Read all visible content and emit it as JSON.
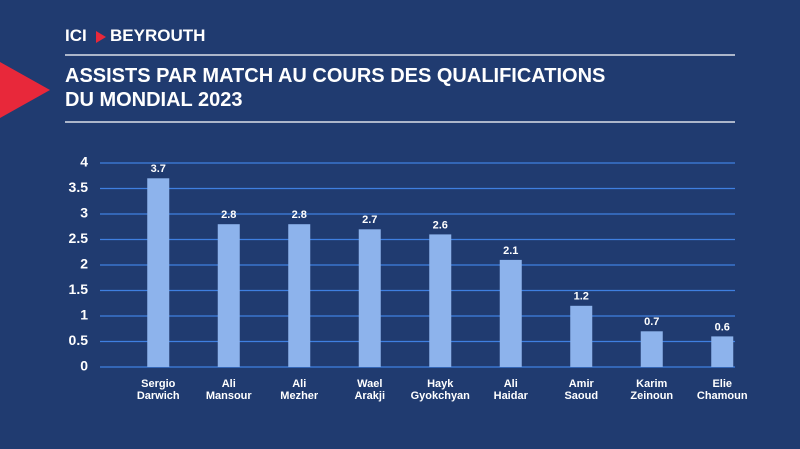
{
  "header": {
    "brand_left": "ICI",
    "brand_right": "BEYROUTH"
  },
  "chart_data": {
    "type": "bar",
    "title": "ASSISTS PAR MATCH AU COURS DES QUALIFICATIONS\nDU MONDIAL 2023",
    "categories": [
      "Sergio\nDarwich",
      "Ali\nMansour",
      "Ali\nMezher",
      "Wael\nArakji",
      "Hayk\nGyokchyan",
      "Ali\nHaidar",
      "Amir\nSaoud",
      "Karim\nZeinoun",
      "Elie\nChamoun"
    ],
    "values": [
      3.7,
      2.8,
      2.8,
      2.7,
      2.6,
      2.1,
      1.2,
      0.7,
      0.6
    ],
    "color": "#8db3ec",
    "ylim": [
      0,
      4
    ],
    "yticks": [
      0,
      0.5,
      1,
      1.5,
      2,
      2.5,
      3,
      3.5,
      4
    ],
    "grid": true
  }
}
